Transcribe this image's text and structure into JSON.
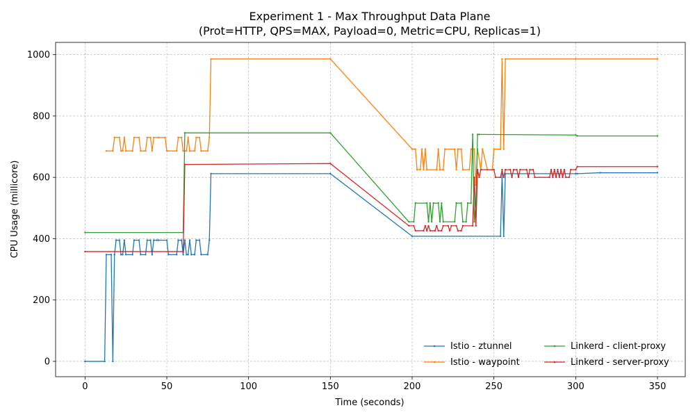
{
  "chart_data": {
    "type": "line",
    "title": "Experiment 1 - Max Throughput Data Plane",
    "subtitle": "(Prot=HTTP, QPS=MAX, Payload=0, Metric=CPU, Replicas=1)",
    "xlabel": "Time (seconds)",
    "ylabel": "CPU Usage (millicore)",
    "xlim": [
      -18,
      367
    ],
    "ylim": [
      -50,
      1040
    ],
    "xticks": [
      0,
      50,
      100,
      150,
      200,
      250,
      300,
      350
    ],
    "yticks": [
      0,
      200,
      400,
      600,
      800,
      1000
    ],
    "grid": true,
    "legend_position": "lower-right",
    "series": [
      {
        "name": "Istio - ztunnel",
        "color": "#1f77b4",
        "points": [
          [
            0,
            0
          ],
          [
            12,
            0
          ],
          [
            13,
            348
          ],
          [
            16,
            348
          ],
          [
            17,
            0
          ],
          [
            18,
            348
          ],
          [
            19,
            395
          ],
          [
            21,
            395
          ],
          [
            22,
            348
          ],
          [
            23,
            348
          ],
          [
            24,
            395
          ],
          [
            25,
            348
          ],
          [
            29,
            348
          ],
          [
            30,
            395
          ],
          [
            33,
            395
          ],
          [
            34,
            348
          ],
          [
            37,
            348
          ],
          [
            38,
            395
          ],
          [
            40,
            395
          ],
          [
            41,
            348
          ],
          [
            42,
            395
          ],
          [
            44,
            395
          ],
          [
            45,
            395
          ],
          [
            50,
            395
          ],
          [
            51,
            348
          ],
          [
            56,
            348
          ],
          [
            57,
            395
          ],
          [
            59,
            395
          ],
          [
            60,
            348
          ],
          [
            61,
            395
          ],
          [
            62,
            348
          ],
          [
            63,
            348
          ],
          [
            64,
            395
          ],
          [
            65,
            348
          ],
          [
            67,
            348
          ],
          [
            68,
            395
          ],
          [
            70,
            395
          ],
          [
            71,
            348
          ],
          [
            75,
            348
          ],
          [
            76,
            395
          ],
          [
            77,
            612
          ],
          [
            150,
            612
          ],
          [
            200,
            408
          ],
          [
            254,
            408
          ],
          [
            255,
            612
          ],
          [
            256,
            408
          ],
          [
            257,
            612
          ],
          [
            300,
            612
          ],
          [
            301,
            612
          ],
          [
            315,
            615
          ],
          [
            350,
            615
          ]
        ]
      },
      {
        "name": "Istio - waypoint",
        "color": "#ff7f0e",
        "points": [
          [
            13,
            686
          ],
          [
            17,
            686
          ],
          [
            18,
            730
          ],
          [
            21,
            730
          ],
          [
            22,
            686
          ],
          [
            23,
            686
          ],
          [
            24,
            730
          ],
          [
            25,
            686
          ],
          [
            29,
            686
          ],
          [
            30,
            730
          ],
          [
            33,
            730
          ],
          [
            34,
            686
          ],
          [
            37,
            686
          ],
          [
            38,
            730
          ],
          [
            40,
            730
          ],
          [
            41,
            686
          ],
          [
            42,
            730
          ],
          [
            45,
            730
          ],
          [
            49,
            730
          ],
          [
            50,
            686
          ],
          [
            56,
            686
          ],
          [
            57,
            730
          ],
          [
            59,
            730
          ],
          [
            60,
            686
          ],
          [
            62,
            686
          ],
          [
            63,
            730
          ],
          [
            64,
            686
          ],
          [
            67,
            686
          ],
          [
            68,
            730
          ],
          [
            70,
            730
          ],
          [
            71,
            686
          ],
          [
            75,
            686
          ],
          [
            76,
            730
          ],
          [
            77,
            986
          ],
          [
            150,
            986
          ],
          [
            200,
            692
          ],
          [
            202,
            692
          ],
          [
            203,
            625
          ],
          [
            205,
            625
          ],
          [
            206,
            692
          ],
          [
            207,
            625
          ],
          [
            208,
            692
          ],
          [
            209,
            625
          ],
          [
            215,
            625
          ],
          [
            216,
            692
          ],
          [
            217,
            625
          ],
          [
            219,
            625
          ],
          [
            220,
            692
          ],
          [
            226,
            692
          ],
          [
            227,
            625
          ],
          [
            228,
            692
          ],
          [
            230,
            692
          ],
          [
            231,
            625
          ],
          [
            235,
            625
          ],
          [
            236,
            692
          ],
          [
            238,
            692
          ],
          [
            239,
            575
          ],
          [
            240,
            692
          ],
          [
            242,
            625
          ],
          [
            243,
            692
          ],
          [
            246,
            625
          ],
          [
            249,
            625
          ],
          [
            250,
            692
          ],
          [
            254,
            692
          ],
          [
            255,
            986
          ],
          [
            256,
            692
          ],
          [
            257,
            986
          ],
          [
            300,
            986
          ],
          [
            350,
            986
          ]
        ]
      },
      {
        "name": "Linkerd - client-proxy",
        "color": "#2ca02c",
        "points": [
          [
            0,
            420
          ],
          [
            60,
            420
          ],
          [
            61,
            745
          ],
          [
            150,
            745
          ],
          [
            198,
            455
          ],
          [
            201,
            455
          ],
          [
            202,
            516
          ],
          [
            209,
            516
          ],
          [
            210,
            455
          ],
          [
            211,
            516
          ],
          [
            212,
            455
          ],
          [
            213,
            516
          ],
          [
            216,
            516
          ],
          [
            217,
            455
          ],
          [
            218,
            516
          ],
          [
            219,
            455
          ],
          [
            226,
            455
          ],
          [
            227,
            516
          ],
          [
            230,
            516
          ],
          [
            231,
            455
          ],
          [
            233,
            455
          ],
          [
            234,
            516
          ],
          [
            236,
            516
          ],
          [
            237,
            740
          ],
          [
            238,
            455
          ],
          [
            239,
            516
          ],
          [
            240,
            740
          ],
          [
            241,
            740
          ],
          [
            300,
            738
          ],
          [
            301,
            735
          ],
          [
            350,
            735
          ]
        ]
      },
      {
        "name": "Linkerd - server-proxy",
        "color": "#d62728",
        "points": [
          [
            0,
            358
          ],
          [
            60,
            358
          ],
          [
            61,
            642
          ],
          [
            150,
            645
          ],
          [
            198,
            442
          ],
          [
            201,
            442
          ],
          [
            202,
            426
          ],
          [
            207,
            426
          ],
          [
            208,
            442
          ],
          [
            209,
            426
          ],
          [
            210,
            442
          ],
          [
            211,
            426
          ],
          [
            214,
            426
          ],
          [
            215,
            442
          ],
          [
            216,
            426
          ],
          [
            218,
            426
          ],
          [
            219,
            442
          ],
          [
            222,
            442
          ],
          [
            223,
            426
          ],
          [
            224,
            442
          ],
          [
            227,
            442
          ],
          [
            228,
            426
          ],
          [
            230,
            426
          ],
          [
            231,
            442
          ],
          [
            237,
            442
          ],
          [
            238,
            600
          ],
          [
            239,
            442
          ],
          [
            240,
            625
          ],
          [
            241,
            600
          ],
          [
            242,
            625
          ],
          [
            250,
            625
          ],
          [
            251,
            600
          ],
          [
            254,
            600
          ],
          [
            255,
            625
          ],
          [
            256,
            600
          ],
          [
            257,
            625
          ],
          [
            260,
            625
          ],
          [
            261,
            600
          ],
          [
            262,
            625
          ],
          [
            264,
            625
          ],
          [
            265,
            600
          ],
          [
            266,
            625
          ],
          [
            270,
            625
          ],
          [
            271,
            600
          ],
          [
            272,
            625
          ],
          [
            274,
            625
          ],
          [
            275,
            600
          ],
          [
            284,
            600
          ],
          [
            285,
            625
          ],
          [
            286,
            600
          ],
          [
            287,
            625
          ],
          [
            288,
            600
          ],
          [
            289,
            625
          ],
          [
            290,
            600
          ],
          [
            291,
            625
          ],
          [
            292,
            600
          ],
          [
            293,
            625
          ],
          [
            294,
            600
          ],
          [
            296,
            600
          ],
          [
            297,
            625
          ],
          [
            300,
            625
          ],
          [
            301,
            635
          ],
          [
            350,
            635
          ]
        ]
      }
    ]
  }
}
